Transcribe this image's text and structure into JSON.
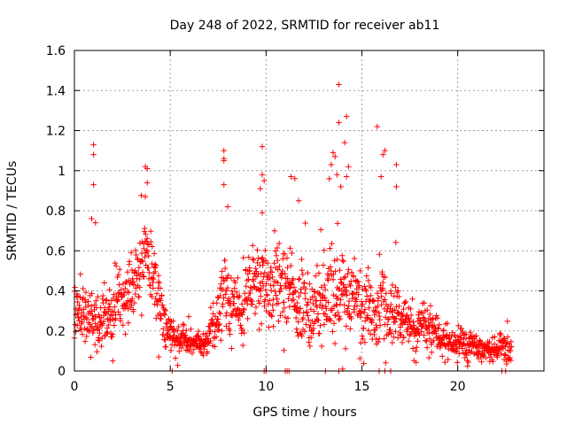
{
  "chart_data": {
    "type": "scatter",
    "title": "Day 248 of 2022, SRMTID for receiver ab11",
    "xlabel": "GPS time / hours",
    "ylabel": "SRMTID / TECUs",
    "xlim": [
      0,
      24.5
    ],
    "ylim": [
      0,
      1.6
    ],
    "x_ticks": [
      0,
      5,
      10,
      15,
      20
    ],
    "x_tick_labels": [
      "0",
      "5",
      "10",
      "15",
      "20"
    ],
    "y_ticks": [
      0,
      0.2,
      0.4,
      0.6,
      0.8,
      1.0,
      1.2,
      1.4,
      1.6
    ],
    "y_tick_labels": [
      "0",
      "0.2",
      "0.4",
      "0.6",
      "0.8",
      "1",
      "1.2",
      "1.4",
      "1.6"
    ],
    "grid": true,
    "marker": "+",
    "color": "#ff0000",
    "envelope": [
      {
        "x": 0.0,
        "y": 0.28,
        "spread": 0.12
      },
      {
        "x": 1.0,
        "y": 0.26,
        "spread": 0.12
      },
      {
        "x": 2.0,
        "y": 0.3,
        "spread": 0.12
      },
      {
        "x": 3.0,
        "y": 0.4,
        "spread": 0.13
      },
      {
        "x": 3.8,
        "y": 0.6,
        "spread": 0.14
      },
      {
        "x": 4.4,
        "y": 0.36,
        "spread": 0.12
      },
      {
        "x": 5.0,
        "y": 0.18,
        "spread": 0.07
      },
      {
        "x": 6.0,
        "y": 0.14,
        "spread": 0.05
      },
      {
        "x": 7.0,
        "y": 0.15,
        "spread": 0.06
      },
      {
        "x": 7.8,
        "y": 0.38,
        "spread": 0.15
      },
      {
        "x": 8.5,
        "y": 0.3,
        "spread": 0.12
      },
      {
        "x": 9.5,
        "y": 0.46,
        "spread": 0.17
      },
      {
        "x": 10.5,
        "y": 0.44,
        "spread": 0.17
      },
      {
        "x": 11.5,
        "y": 0.38,
        "spread": 0.16
      },
      {
        "x": 12.5,
        "y": 0.3,
        "spread": 0.15
      },
      {
        "x": 13.5,
        "y": 0.4,
        "spread": 0.19
      },
      {
        "x": 14.5,
        "y": 0.38,
        "spread": 0.18
      },
      {
        "x": 15.5,
        "y": 0.3,
        "spread": 0.16
      },
      {
        "x": 16.5,
        "y": 0.3,
        "spread": 0.14
      },
      {
        "x": 17.5,
        "y": 0.22,
        "spread": 0.1
      },
      {
        "x": 18.5,
        "y": 0.2,
        "spread": 0.09
      },
      {
        "x": 19.5,
        "y": 0.14,
        "spread": 0.06
      },
      {
        "x": 20.5,
        "y": 0.13,
        "spread": 0.06
      },
      {
        "x": 21.5,
        "y": 0.11,
        "spread": 0.05
      },
      {
        "x": 22.8,
        "y": 0.12,
        "spread": 0.06
      }
    ],
    "sample_count": 1500,
    "sample_seed": 248,
    "x_range": [
      0,
      22.8
    ],
    "outliers": [
      {
        "x": 1.0,
        "y": 1.13
      },
      {
        "x": 1.0,
        "y": 1.08
      },
      {
        "x": 1.0,
        "y": 0.93
      },
      {
        "x": 0.9,
        "y": 0.76
      },
      {
        "x": 1.1,
        "y": 0.74
      },
      {
        "x": 3.7,
        "y": 1.02
      },
      {
        "x": 3.8,
        "y": 1.01
      },
      {
        "x": 3.8,
        "y": 0.94
      },
      {
        "x": 3.7,
        "y": 0.87
      },
      {
        "x": 7.8,
        "y": 1.1
      },
      {
        "x": 7.8,
        "y": 1.06
      },
      {
        "x": 7.8,
        "y": 1.05
      },
      {
        "x": 7.8,
        "y": 0.93
      },
      {
        "x": 8.0,
        "y": 0.82
      },
      {
        "x": 9.8,
        "y": 1.12
      },
      {
        "x": 9.8,
        "y": 0.98
      },
      {
        "x": 9.9,
        "y": 0.95
      },
      {
        "x": 9.7,
        "y": 0.91
      },
      {
        "x": 9.8,
        "y": 0.79
      },
      {
        "x": 11.3,
        "y": 0.97
      },
      {
        "x": 11.5,
        "y": 0.96
      },
      {
        "x": 11.7,
        "y": 0.85
      },
      {
        "x": 13.5,
        "y": 1.09
      },
      {
        "x": 13.6,
        "y": 1.07
      },
      {
        "x": 13.4,
        "y": 1.03
      },
      {
        "x": 13.7,
        "y": 0.98
      },
      {
        "x": 13.8,
        "y": 1.43
      },
      {
        "x": 13.8,
        "y": 1.24
      },
      {
        "x": 14.2,
        "y": 1.27
      },
      {
        "x": 14.1,
        "y": 1.14
      },
      {
        "x": 14.3,
        "y": 1.02
      },
      {
        "x": 14.2,
        "y": 0.97
      },
      {
        "x": 13.9,
        "y": 0.92
      },
      {
        "x": 15.8,
        "y": 1.22
      },
      {
        "x": 16.2,
        "y": 1.1
      },
      {
        "x": 16.1,
        "y": 1.08
      },
      {
        "x": 16.0,
        "y": 0.97
      },
      {
        "x": 16.8,
        "y": 1.03
      },
      {
        "x": 16.8,
        "y": 0.92
      },
      {
        "x": 4.4,
        "y": 0.07
      },
      {
        "x": 5.1,
        "y": 0.0
      },
      {
        "x": 9.9,
        "y": 0.0
      },
      {
        "x": 10.0,
        "y": 0.0
      },
      {
        "x": 11.0,
        "y": 0.0
      },
      {
        "x": 11.1,
        "y": 0.0
      },
      {
        "x": 11.2,
        "y": 0.0
      },
      {
        "x": 13.1,
        "y": 0.0
      },
      {
        "x": 13.8,
        "y": 0.0
      },
      {
        "x": 14.0,
        "y": 0.01
      },
      {
        "x": 15.9,
        "y": 0.0
      },
      {
        "x": 16.2,
        "y": 0.0
      },
      {
        "x": 16.5,
        "y": 0.0
      },
      {
        "x": 22.3,
        "y": 0.0
      },
      {
        "x": 22.5,
        "y": 0.0
      }
    ]
  }
}
